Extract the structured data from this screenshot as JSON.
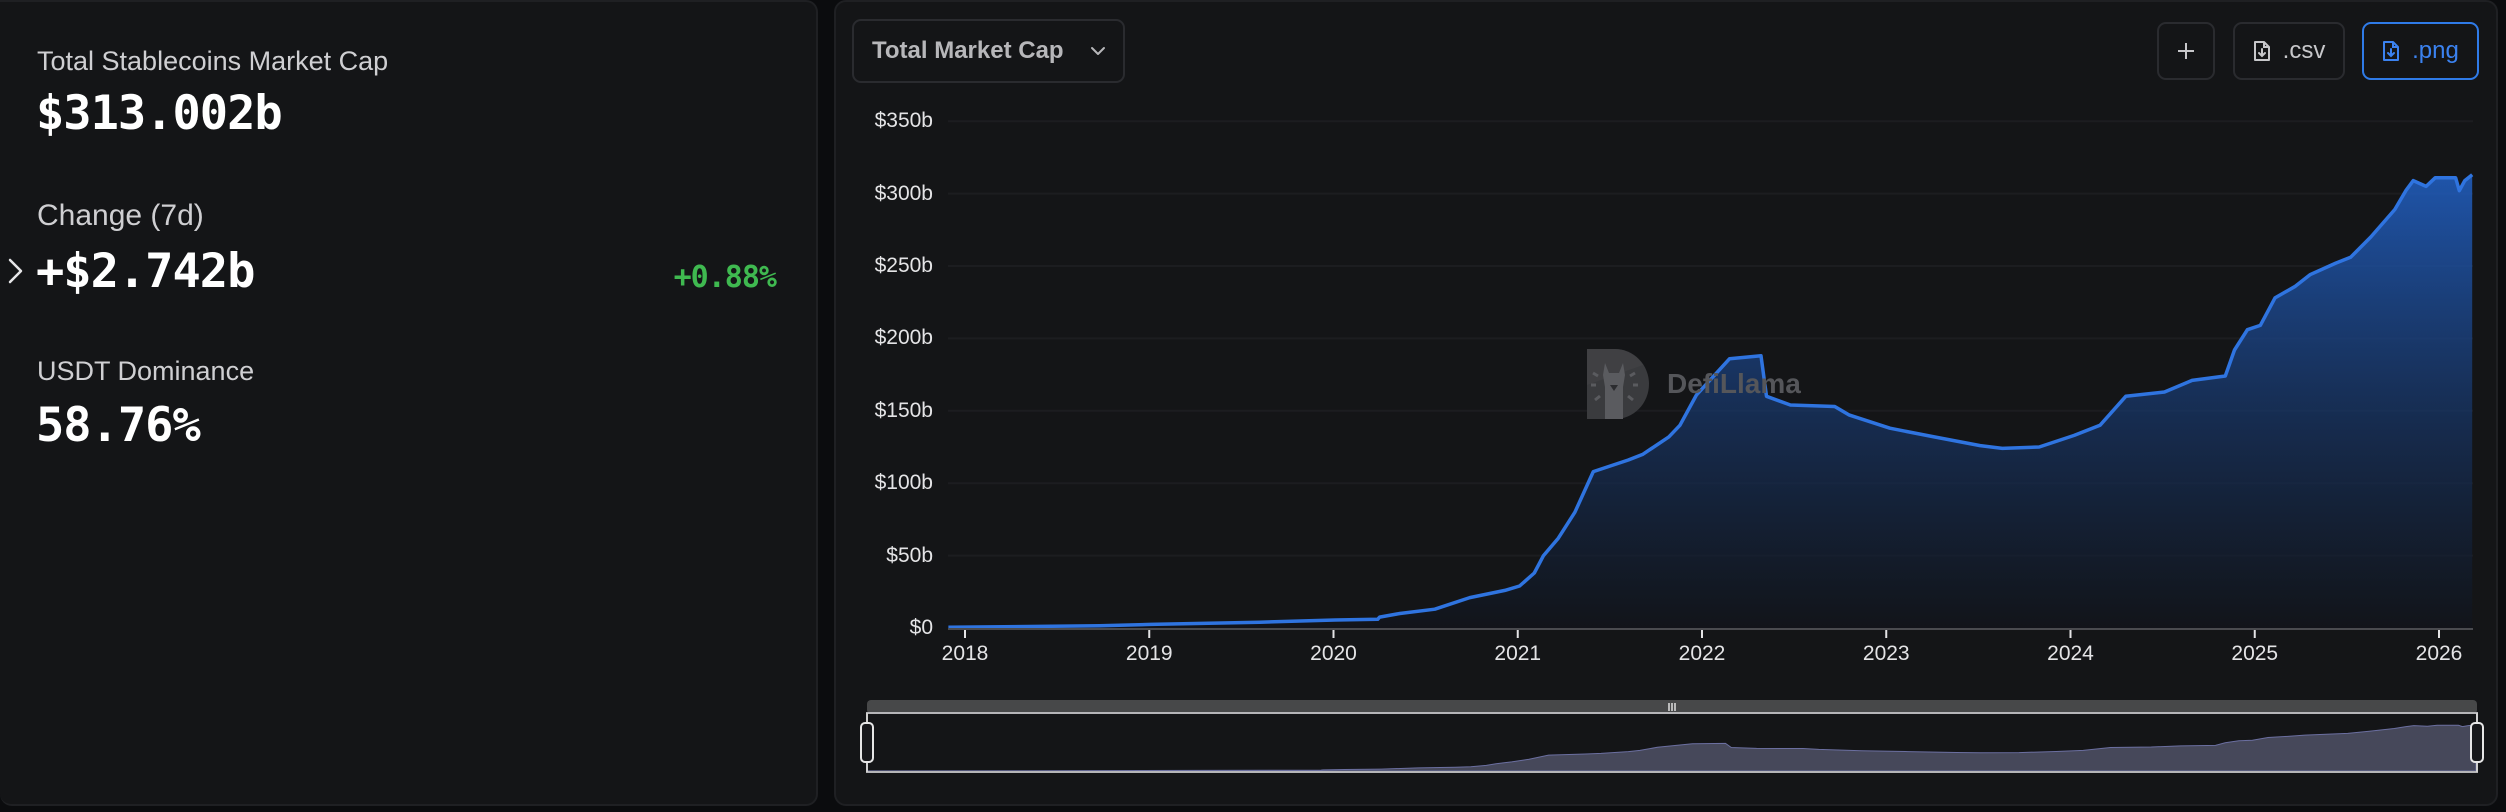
{
  "summary": {
    "total_label": "Total Stablecoins Market Cap",
    "total_value": "$313.002b",
    "change_label": "Change (7d)",
    "change_value": "+$2.742b",
    "change_percent": "+0.88%",
    "dominance_label": "USDT Dominance",
    "dominance_value": "58.76%"
  },
  "toolbar": {
    "metric_selected": "Total Market Cap",
    "add_icon": "plus-icon",
    "csv_label": ".csv",
    "png_label": ".png",
    "download_icon": "file-download-icon"
  },
  "watermark": {
    "text": "DefiLlama"
  },
  "colors": {
    "line": "#2f74e0",
    "positive": "#3fb950",
    "accent": "#2f7be8"
  },
  "chart_data": {
    "type": "area",
    "title": "Total Market Cap",
    "xlabel": "",
    "ylabel": "",
    "x_ticks": [
      "2018",
      "2019",
      "2020",
      "2021",
      "2022",
      "2023",
      "2024",
      "2025",
      "2026"
    ],
    "y_ticks": [
      "$0",
      "$50b",
      "$100b",
      "$150b",
      "$200b",
      "$250b",
      "$300b",
      "$350b"
    ],
    "ylim": [
      0,
      350
    ],
    "grid": true,
    "legend": null,
    "series": [
      {
        "name": "Total Stablecoins Market Cap ($b)",
        "x": [
          2017.91,
          2018.73,
          2019.01,
          2019.6,
          2020.01,
          2020.24,
          2020.25,
          2020.36,
          2020.55,
          2020.74,
          2020.93,
          2021.01,
          2021.09,
          2021.14,
          2021.22,
          2021.31,
          2021.41,
          2021.6,
          2021.68,
          2021.82,
          2021.88,
          2021.97,
          2022.15,
          2022.32,
          2022.35,
          2022.48,
          2022.72,
          2022.8,
          2023.02,
          2023.26,
          2023.51,
          2023.63,
          2023.83,
          2024.02,
          2024.16,
          2024.3,
          2024.51,
          2024.66,
          2024.84,
          2024.89,
          2024.96,
          2025.03,
          2025.11,
          2025.22,
          2025.3,
          2025.44,
          2025.52,
          2025.63,
          2025.76,
          2025.82,
          2025.86,
          2025.93,
          2025.98,
          2026.09,
          2026.11,
          2026.14,
          2026.18
        ],
        "values": [
          0.5,
          1.5,
          2.5,
          4,
          5.5,
          6,
          7.5,
          10,
          13,
          21,
          26,
          29,
          38,
          50,
          62,
          80,
          108,
          116,
          120,
          132,
          140,
          161,
          186,
          188,
          160,
          154,
          153,
          147,
          138,
          132,
          126,
          124,
          125,
          133,
          140,
          160,
          163,
          171,
          174,
          192,
          206,
          209,
          228,
          236,
          244,
          252,
          256,
          270,
          289,
          302,
          309,
          305,
          311,
          311,
          302,
          309,
          313
        ]
      }
    ]
  }
}
